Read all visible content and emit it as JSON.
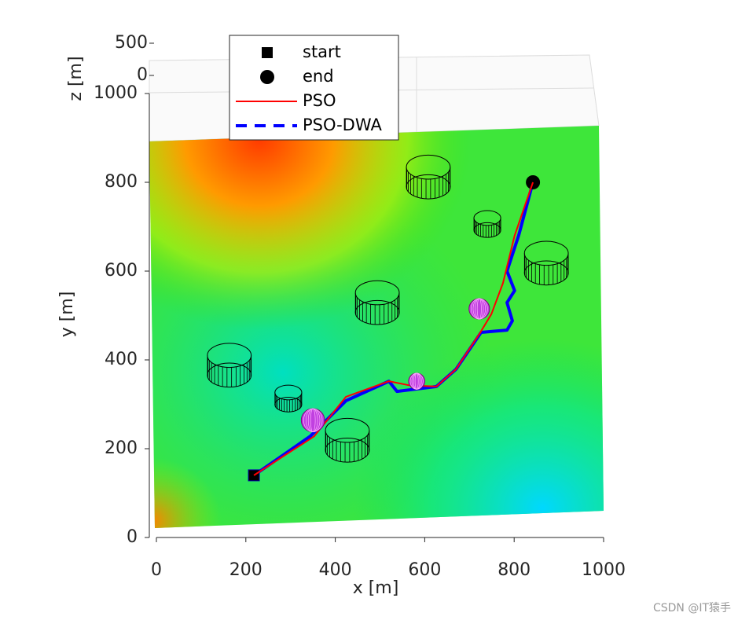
{
  "chart_data": {
    "type": "line",
    "xlabel": "x [m]",
    "ylabel": "y [m]",
    "zlabel": "z [m]",
    "xlim": [
      0,
      1000
    ],
    "ylim": [
      0,
      1000
    ],
    "zlim": [
      0,
      500
    ],
    "xticks": [
      0,
      200,
      400,
      600,
      800,
      1000
    ],
    "yticks": [
      0,
      200,
      400,
      600,
      800,
      1000
    ],
    "zticks": [
      0,
      500
    ],
    "legend": "top-left",
    "series": [
      {
        "name": "start",
        "color": "#000000",
        "marker": "square",
        "x": [
          218
        ],
        "values": [
          140
        ]
      },
      {
        "name": "end",
        "color": "#000000",
        "marker": "circle",
        "x": [
          842
        ],
        "values": [
          800
        ]
      },
      {
        "name": "PSO",
        "color": "#ff0000",
        "x": [
          218,
          353,
          424,
          520,
          564,
          626,
          670,
          722,
          749,
          775,
          801,
          842
        ],
        "values": [
          140,
          228,
          317,
          352,
          343,
          340,
          379,
          458,
          503,
          573,
          680,
          800
        ]
      },
      {
        "name": "PSO-DWA",
        "color": "#0000ff",
        "dashed": true,
        "x": [
          218,
          344,
          424,
          520,
          538,
          626,
          670,
          726,
          784,
          796,
          784,
          801,
          784,
          810,
          842
        ],
        "values": [
          140,
          228,
          308,
          352,
          329,
          340,
          379,
          462,
          467,
          488,
          529,
          556,
          600,
          680,
          800
        ]
      }
    ],
    "cylinders": [
      {
        "x": 608,
        "y": 812,
        "r": 49
      },
      {
        "x": 740,
        "y": 706,
        "r": 30
      },
      {
        "x": 872,
        "y": 618,
        "r": 49
      },
      {
        "x": 494,
        "y": 529,
        "r": 49
      },
      {
        "x": 163,
        "y": 388,
        "r": 49
      },
      {
        "x": 295,
        "y": 313,
        "r": 30
      },
      {
        "x": 427,
        "y": 219,
        "r": 49
      }
    ],
    "spheres": [
      {
        "x": 350,
        "y": 264,
        "r": 26
      },
      {
        "x": 582,
        "y": 352,
        "r": 18
      },
      {
        "x": 722,
        "y": 515,
        "r": 23
      }
    ],
    "watermark": "CSDN @IT猿手"
  }
}
